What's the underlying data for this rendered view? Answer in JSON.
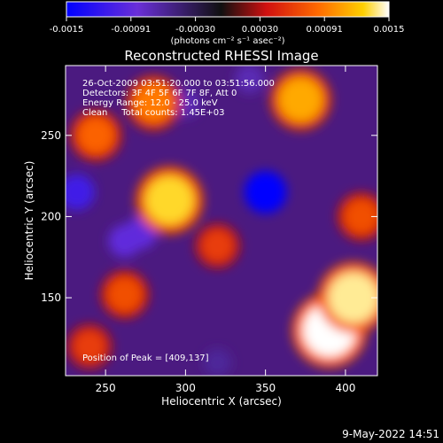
{
  "colorbar": {
    "ticks": [
      "-0.0015",
      "-0.00091",
      "-0.00030",
      "0.00030",
      "0.00091",
      "0.0015"
    ],
    "unit_label": "(photons cm⁻² s⁻¹ asec⁻²)"
  },
  "chart_data": {
    "type": "heatmap",
    "title": "Reconstructed RHESSI Image",
    "xlabel": "Heliocentric X (arcsec)",
    "ylabel": "Heliocentric Y (arcsec)",
    "xlim": [
      225,
      420
    ],
    "ylim": [
      102,
      293
    ],
    "x_ticks": [
      250,
      300,
      350,
      400
    ],
    "y_ticks": [
      150,
      200,
      250
    ],
    "value_range": [
      -0.0015,
      0.0015
    ],
    "colormap": [
      "#0000ff",
      "#6a2fd8",
      "#101010",
      "#d01010",
      "#ff6a00",
      "#ffd000",
      "#ffffff"
    ],
    "annotations": [
      "26-Oct-2009 03:51:20.000 to 03:51:56.000",
      "Detectors: 3F 4F 5F 6F 7F 8F, Att 0",
      "Energy Range: 12.0 - 25.0 keV",
      "Clean     Total counts: 1.45E+03"
    ],
    "peak_label": "Position of Peak = [409,137]",
    "peak": [
      409,
      137
    ],
    "bright_regions": [
      {
        "x": 290,
        "y": 210,
        "value": 0.0013
      },
      {
        "x": 390,
        "y": 130,
        "value": 0.0015
      },
      {
        "x": 405,
        "y": 150,
        "value": 0.0014
      },
      {
        "x": 372,
        "y": 272,
        "value": 0.0011
      },
      {
        "x": 280,
        "y": 270,
        "value": 0.0009
      },
      {
        "x": 244,
        "y": 250,
        "value": 0.0008
      },
      {
        "x": 320,
        "y": 182,
        "value": 0.0006
      },
      {
        "x": 262,
        "y": 152,
        "value": 0.0007
      },
      {
        "x": 240,
        "y": 120,
        "value": 0.0006
      },
      {
        "x": 410,
        "y": 200,
        "value": 0.0007
      }
    ],
    "dim_regions": [
      {
        "x": 350,
        "y": 215,
        "value": -0.0015
      },
      {
        "x": 232,
        "y": 215,
        "value": -0.0011
      },
      {
        "x": 272,
        "y": 190,
        "value": -0.0009
      },
      {
        "x": 262,
        "y": 185,
        "value": -0.0009
      },
      {
        "x": 300,
        "y": 270,
        "value": -0.0007
      },
      {
        "x": 340,
        "y": 285,
        "value": -0.0007
      },
      {
        "x": 320,
        "y": 110,
        "value": -0.0006
      }
    ]
  },
  "timestamp": "9-May-2022 14:51"
}
